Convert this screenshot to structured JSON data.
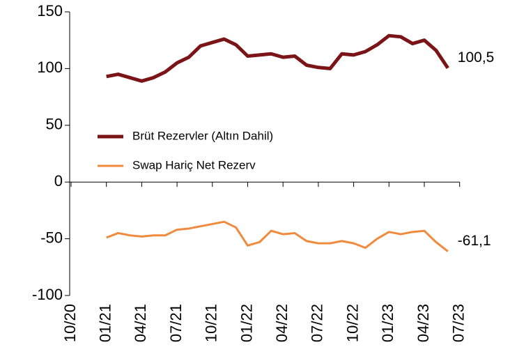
{
  "chart_data": {
    "type": "line",
    "categories": [
      "10/20",
      null,
      null,
      "01/21",
      null,
      null,
      "04/21",
      null,
      null,
      "07/21",
      null,
      null,
      "10/21",
      null,
      null,
      "01/22",
      null,
      null,
      "04/22",
      null,
      null,
      "07/22",
      null,
      null,
      "10/22",
      null,
      null,
      "01/23",
      null,
      null,
      "04/23",
      null,
      null,
      "07/23"
    ],
    "series": [
      {
        "name": "Brüt Rezervler (Altın Dahil)",
        "color": "#7b1416",
        "values": [
          null,
          null,
          null,
          93,
          95,
          92,
          89,
          92,
          97,
          105,
          110,
          120,
          123,
          126,
          121,
          111,
          112,
          113,
          110,
          111,
          103,
          101,
          100,
          113,
          112,
          115,
          121,
          129,
          128,
          122,
          125,
          116,
          100.5,
          null
        ],
        "value_labels": [
          null,
          null,
          null,
          null,
          null,
          null,
          null,
          null,
          null,
          null,
          null,
          null,
          null,
          null,
          null,
          null,
          null,
          null,
          null,
          null,
          null,
          null,
          null,
          null,
          null,
          null,
          null,
          null,
          null,
          null,
          null,
          null,
          "100,5",
          null
        ]
      },
      {
        "name": "Swap Hariç Net Rezerv",
        "color": "#f08a3c",
        "values": [
          null,
          null,
          null,
          -49,
          -45,
          -47,
          -48,
          -47,
          -47,
          -42,
          -41,
          -39,
          -37,
          -35,
          -40,
          -56,
          -53,
          -43,
          -46,
          -45,
          -52,
          -54,
          -54,
          -52,
          -54,
          -58,
          -50,
          -44,
          -46,
          -44,
          -43,
          -53,
          -61.1,
          null
        ],
        "value_labels": [
          null,
          null,
          null,
          null,
          null,
          null,
          null,
          null,
          null,
          null,
          null,
          null,
          null,
          null,
          null,
          null,
          null,
          null,
          null,
          null,
          null,
          null,
          null,
          null,
          null,
          null,
          null,
          null,
          null,
          null,
          null,
          null,
          "-61,1",
          null
        ]
      }
    ],
    "ylim": [
      -100,
      150
    ],
    "yticks": [
      150,
      100,
      50,
      0,
      -50,
      -100
    ]
  }
}
